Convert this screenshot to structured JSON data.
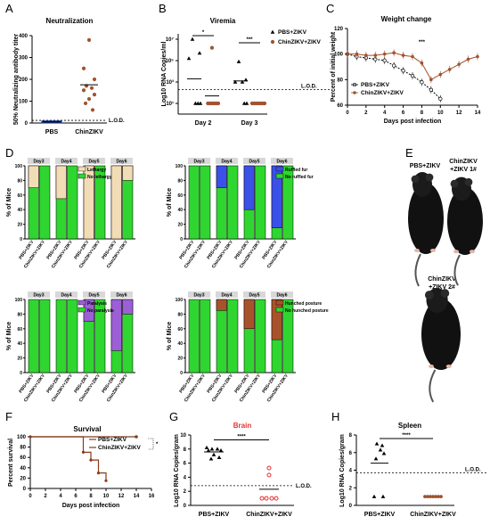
{
  "panel_letters": [
    "A",
    "B",
    "C",
    "D",
    "E",
    "F",
    "G",
    "H"
  ],
  "colors": {
    "pbs": "#000000",
    "chin": "#a0522d",
    "lethargy": "#f2dcb6",
    "fur": "#3a50e8",
    "paralysis": "#9c5fd6",
    "hunched": "#a8522b",
    "normal": "#2fd62f",
    "stat_red": "#e53030",
    "pbs_surv": "#8b3a1a",
    "chin_surv": "#7b3f1e"
  },
  "chart_data": [
    {
      "id": "A",
      "type": "scatter",
      "title": "Neutralization",
      "ylabel": "50% Neutralizing antibody titer",
      "categories": [
        "PBS",
        "ChinZIKV"
      ],
      "ylim": [
        0,
        400
      ],
      "yticks": [
        0,
        100,
        200,
        300,
        400
      ],
      "series": [
        {
          "group": "PBS",
          "values": [
            5,
            5,
            5,
            5,
            5,
            5,
            5,
            5
          ]
        },
        {
          "group": "ChinZIKV",
          "values": [
            380,
            250,
            200,
            170,
            160,
            150,
            130,
            110,
            90,
            60
          ]
        }
      ],
      "lod_label": "L.O.D."
    },
    {
      "id": "B",
      "type": "scatter",
      "title": "Viremia",
      "ylabel": "Log10 RNA Copies/ml",
      "categories": [
        "Day 2",
        "Day 3"
      ],
      "yticks": [
        "10¹",
        "10³",
        "10⁵",
        "10⁷"
      ],
      "ylog_range": [
        0,
        7
      ],
      "lod_value": 2.3,
      "lod_label": "L.O.D.",
      "legend": [
        "PBS+ZIKV",
        "ChinZIKV+ZIKV"
      ],
      "series": [
        {
          "name": "PBS+ZIKV",
          "day": "Day 2",
          "values": [
            7,
            5.7,
            5.2,
            1,
            1,
            1
          ]
        },
        {
          "name": "ChinZIKV+ZIKV",
          "day": "Day 2",
          "values": [
            6.2,
            1,
            1,
            1,
            1,
            1,
            1
          ]
        },
        {
          "name": "PBS+ZIKV",
          "day": "Day 3",
          "values": [
            4.9,
            3.2,
            3.0,
            3.0,
            1,
            1
          ]
        },
        {
          "name": "ChinZIKV+ZIKV",
          "day": "Day 3",
          "values": [
            1,
            1,
            1,
            1,
            1,
            1,
            1
          ]
        }
      ],
      "stats": [
        "*",
        "***"
      ]
    },
    {
      "id": "C",
      "type": "line",
      "title": "Weight change",
      "xlabel": "Days post infection",
      "ylabel": "Percent of initial weight",
      "x": [
        0,
        1,
        2,
        3,
        4,
        5,
        6,
        7,
        8,
        9,
        10,
        11,
        12,
        13,
        14
      ],
      "xticks": [
        0,
        2,
        4,
        6,
        8,
        10,
        12,
        14
      ],
      "ylim": [
        60,
        120
      ],
      "yticks": [
        60,
        80,
        100,
        120
      ],
      "series": [
        {
          "name": "PBS+ZIKV",
          "values": [
            100,
            98,
            97,
            96,
            95,
            91,
            87,
            83,
            78,
            72,
            65,
            null,
            null,
            null,
            null
          ]
        },
        {
          "name": "ChinZIKV+ZIKV",
          "values": [
            100,
            100,
            99,
            99,
            100,
            101,
            99,
            98,
            93,
            80,
            84,
            88,
            92,
            96,
            98
          ]
        }
      ],
      "stat": "***"
    },
    {
      "id": "D1",
      "type": "bar",
      "categories_groups": [
        "Day3",
        "Day4",
        "Day5",
        "Day6"
      ],
      "x_labels": [
        "PBS+ZIKV",
        "ChinZIKV+ZIKV"
      ],
      "ylabel": "% of Mice",
      "yticks": [
        0,
        20,
        40,
        60,
        80,
        100
      ],
      "legend": [
        "Lethargy",
        "No lethargy"
      ],
      "values_top": [
        [
          30,
          0
        ],
        [
          45,
          0
        ],
        [
          100,
          0
        ],
        [
          100,
          20
        ]
      ]
    },
    {
      "id": "D2",
      "type": "bar",
      "categories_groups": [
        "Day3",
        "Day4",
        "Day5",
        "Day6"
      ],
      "x_labels": [
        "PBS+ZIKV",
        "ChinZIKV+ZIKV"
      ],
      "ylabel": "% of Mice",
      "yticks": [
        0,
        20,
        40,
        60,
        80,
        100
      ],
      "legend": [
        "Ruffled fur",
        "No ruffled fur"
      ],
      "values_top": [
        [
          0,
          0
        ],
        [
          30,
          0
        ],
        [
          60,
          0
        ],
        [
          85,
          0
        ]
      ]
    },
    {
      "id": "D3",
      "type": "bar",
      "categories_groups": [
        "Day3",
        "Day4",
        "Day5",
        "Day6"
      ],
      "x_labels": [
        "PBS+ZIKV",
        "ChinZIKV+ZIKV"
      ],
      "ylabel": "% of Mice",
      "yticks": [
        0,
        20,
        40,
        60,
        80,
        100
      ],
      "legend": [
        "Paralysis",
        "No paralysis"
      ],
      "values_top": [
        [
          0,
          0
        ],
        [
          0,
          0
        ],
        [
          30,
          0
        ],
        [
          70,
          20
        ]
      ]
    },
    {
      "id": "D4",
      "type": "bar",
      "categories_groups": [
        "Day3",
        "Day4",
        "Day5",
        "Day6"
      ],
      "x_labels": [
        "PBS+ZIKV",
        "ChinZIKV+ZIKV"
      ],
      "ylabel": "% of Mice",
      "yticks": [
        0,
        20,
        40,
        60,
        80,
        100
      ],
      "legend": [
        "Hunched posture",
        "No hunched posture"
      ],
      "values_top": [
        [
          0,
          0
        ],
        [
          15,
          0
        ],
        [
          40,
          0
        ],
        [
          55,
          0
        ]
      ]
    },
    {
      "id": "F",
      "type": "line",
      "title": "Survival",
      "xlabel": "Days post infection",
      "ylabel": "Percent survival",
      "xlim": [
        0,
        16
      ],
      "xticks": [
        0,
        2,
        4,
        6,
        8,
        10,
        12,
        14,
        16
      ],
      "ylim": [
        0,
        100
      ],
      "yticks": [
        0,
        20,
        40,
        60,
        80,
        100
      ],
      "series": [
        {
          "name": "PBS+ZIKV",
          "x": [
            0,
            7,
            8,
            9,
            10
          ],
          "y": [
            100,
            70,
            55,
            30,
            15
          ]
        },
        {
          "name": "ChinZIKV+ZIKV",
          "x": [
            0,
            14
          ],
          "y": [
            100,
            100
          ]
        }
      ],
      "stat": "*"
    },
    {
      "id": "G",
      "type": "scatter",
      "title": "Brain",
      "ylabel": "Log10 RNA Copies/gram",
      "categories": [
        "PBS+ZIKV",
        "ChinZIKV+ZIKV"
      ],
      "ylim": [
        0,
        10
      ],
      "yticks": [
        0,
        2,
        4,
        6,
        8,
        10
      ],
      "lod_value": 2.8,
      "lod_label": "L.O.D.",
      "series": [
        {
          "group": "PBS+ZIKV",
          "values": [
            8.2,
            8,
            8,
            7.8,
            7.8,
            7.2,
            6.8,
            6.6
          ]
        },
        {
          "group": "ChinZIKV+ZIKV",
          "values": [
            5.3,
            4.3,
            1,
            1,
            1,
            1
          ]
        }
      ],
      "stat": "****"
    },
    {
      "id": "H",
      "type": "scatter",
      "title": "Spleen",
      "ylabel": "Log10 RNA Copies/gram",
      "categories": [
        "PBS+ZIKV",
        "ChinZIKV+ZIKV"
      ],
      "ylim": [
        0,
        8
      ],
      "yticks": [
        0,
        2,
        4,
        6,
        8
      ],
      "lod_value": 3.7,
      "lod_label": "L.O.D.",
      "series": [
        {
          "group": "PBS+ZIKV",
          "values": [
            7,
            6.8,
            6.3,
            5.9,
            5.3,
            1,
            1
          ]
        },
        {
          "group": "ChinZIKV+ZIKV",
          "values": [
            1,
            1,
            1,
            1,
            1,
            1,
            1
          ]
        }
      ],
      "stat": "****"
    }
  ],
  "photos": {
    "label1": "PBS+ZIKV",
    "label2": "ChinZIKV\n+ZIKV 1#",
    "label3": "ChinZIKV\n+ZIKV 2#"
  }
}
